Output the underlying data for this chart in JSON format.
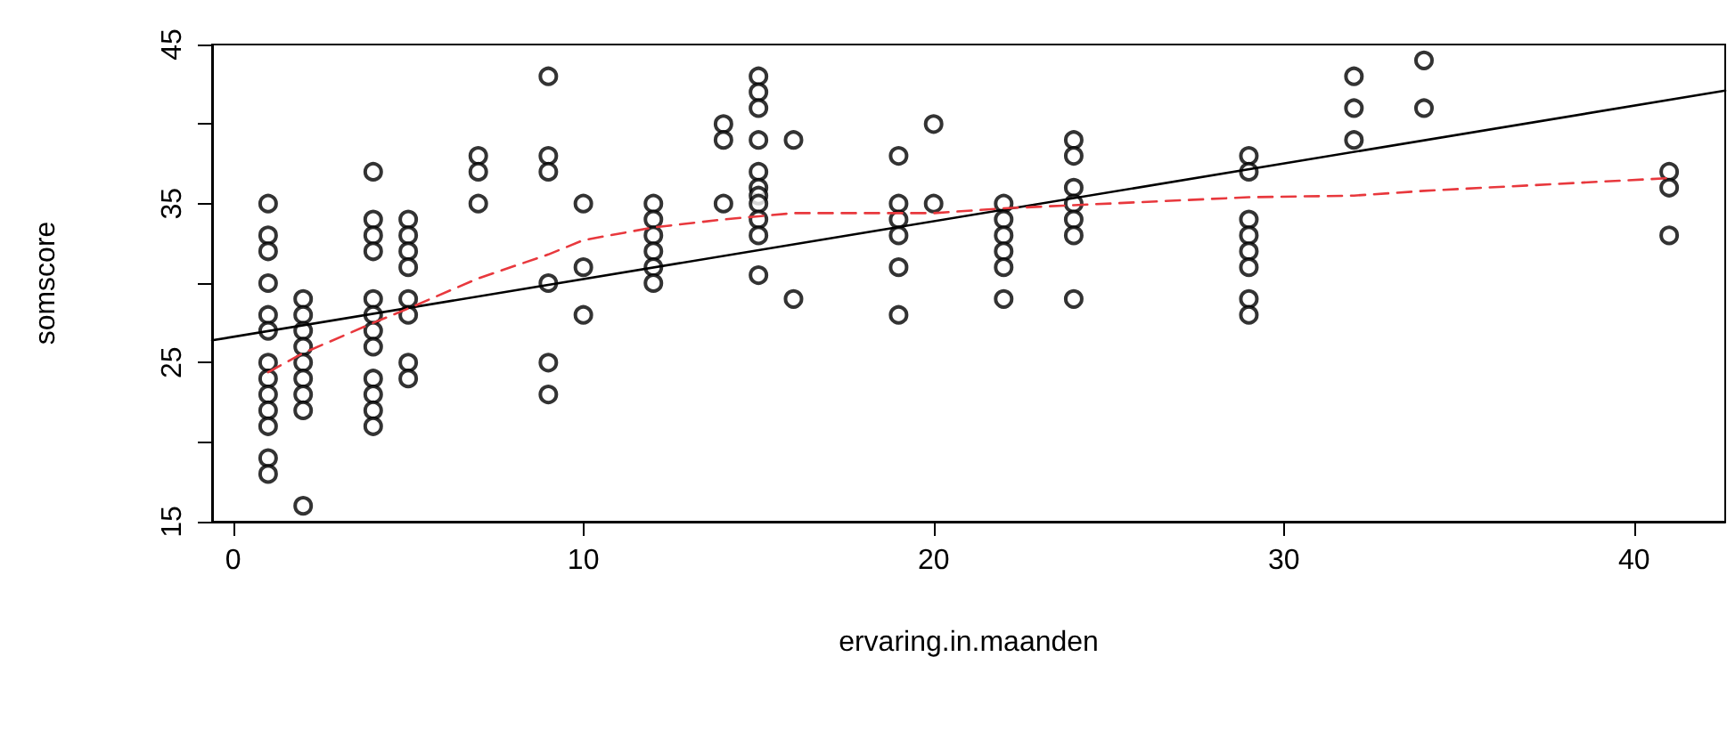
{
  "chart_data": {
    "type": "scatter",
    "xlabel": "ervaring.in.maanden",
    "ylabel": "somscore",
    "xlim": [
      -0.6,
      42.6
    ],
    "xticks": [
      0,
      10,
      20,
      30,
      40
    ],
    "ylim": [
      15,
      45
    ],
    "yticks": [
      15,
      {
        "value": 20,
        "label": null
      },
      25,
      {
        "value": 30,
        "label": null
      },
      35,
      {
        "value": 40,
        "label": null
      },
      45
    ],
    "grid": false,
    "series": [
      {
        "color": "#000000",
        "marker": "circle",
        "x": [
          1,
          1,
          1,
          1,
          1,
          1,
          1,
          1,
          1,
          1,
          1,
          1,
          1,
          2,
          2,
          2,
          2,
          2,
          2,
          2,
          2,
          2,
          4,
          4,
          4,
          4,
          4,
          4,
          4,
          4,
          4,
          4,
          4,
          4,
          5,
          5,
          5,
          5,
          5,
          5,
          5,
          5,
          7,
          7,
          7,
          9,
          9,
          9,
          9,
          9,
          9,
          10,
          10,
          10,
          12,
          12,
          12,
          12,
          12,
          12,
          14,
          14,
          14,
          15,
          15,
          15,
          15,
          15,
          15,
          15.0,
          15,
          15,
          15,
          15,
          16,
          16,
          19,
          19,
          19,
          19,
          19,
          19,
          20,
          20,
          22,
          22,
          22,
          22,
          22,
          22,
          24,
          24,
          24,
          24,
          24,
          24,
          24,
          29,
          29,
          29,
          29,
          29,
          29,
          29,
          29,
          32,
          32,
          32,
          34,
          34,
          41,
          41,
          41
        ],
        "values": [
          35,
          33,
          32,
          30,
          28,
          27,
          25,
          24,
          23,
          22,
          21,
          19,
          18,
          29,
          28,
          27,
          26,
          25,
          24,
          23,
          22,
          16,
          37,
          34,
          33,
          32,
          29,
          28,
          27,
          26,
          24,
          23,
          22,
          21,
          34,
          33,
          32,
          31,
          29,
          28,
          25,
          24,
          38,
          37,
          35,
          43,
          38,
          37,
          30,
          25,
          23,
          35,
          31,
          28,
          35,
          34,
          33,
          32,
          31,
          30,
          40,
          39,
          35,
          43,
          42,
          41,
          39,
          37,
          36,
          35.5,
          35,
          34,
          33,
          30.5,
          39,
          29,
          38,
          35,
          34,
          33,
          31,
          28,
          40,
          35,
          35,
          34,
          33,
          32,
          31,
          29,
          39,
          38,
          36,
          35,
          34,
          33,
          29,
          38,
          37,
          34,
          33,
          32,
          31,
          29,
          28,
          43,
          41,
          39,
          44,
          41,
          37,
          36,
          33
        ]
      },
      {
        "type": "line",
        "color": "#000000",
        "line_style": "solid",
        "marker": "none",
        "x": [
          -0.6,
          42.6
        ],
        "values": [
          26.4,
          42.1
        ]
      },
      {
        "type": "line",
        "color": "#e8383d",
        "line_style": "dashed",
        "marker": "none",
        "x": [
          1,
          2,
          4,
          5,
          7,
          9,
          10,
          12,
          14,
          15,
          16,
          19,
          20,
          22,
          24,
          29,
          32,
          34,
          41
        ],
        "values": [
          24.4,
          25.6,
          27.5,
          28.4,
          30.3,
          31.8,
          32.7,
          33.5,
          34,
          34.2,
          34.4,
          34.4,
          34.4,
          34.7,
          34.9,
          35.4,
          35.5,
          35.8,
          36.6
        ]
      }
    ]
  }
}
